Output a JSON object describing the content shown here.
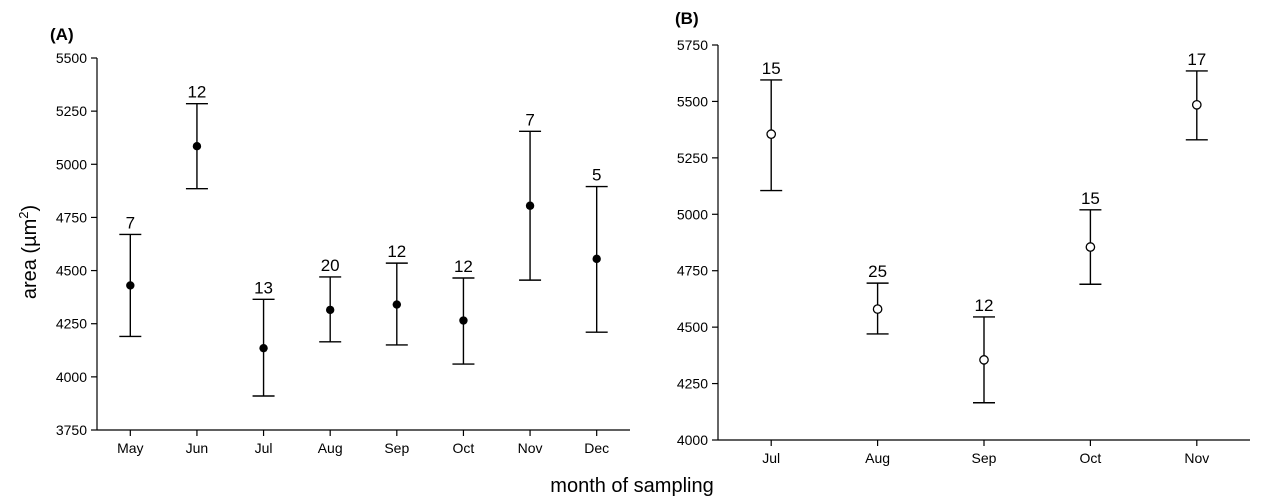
{
  "figure": {
    "xlabel": "month of sampling",
    "ylabel_main": "area (µm",
    "ylabel_sup": "2",
    "ylabel_close": ")"
  },
  "chart_data": [
    {
      "type": "scatter",
      "panel_label": "(A)",
      "marker": "filled-circle",
      "categories": [
        "May",
        "Jun",
        "Jul",
        "Aug",
        "Sep",
        "Oct",
        "Nov",
        "Dec"
      ],
      "means": [
        4430,
        5085,
        4135,
        4315,
        4340,
        4265,
        4805,
        4555
      ],
      "lower": [
        4190,
        4885,
        3910,
        4165,
        4150,
        4060,
        4455,
        4210
      ],
      "upper": [
        4670,
        5285,
        4365,
        4470,
        4535,
        4465,
        5155,
        4895
      ],
      "n": [
        "7",
        "12",
        "13",
        "20",
        "12",
        "12",
        "7",
        "5"
      ],
      "ylim": [
        3750,
        5500
      ],
      "yticks": [
        3750,
        4000,
        4250,
        4500,
        4750,
        5000,
        5250,
        5500
      ],
      "grid": false
    },
    {
      "type": "scatter",
      "panel_label": "(B)",
      "marker": "open-circle",
      "categories": [
        "Jul",
        "Aug",
        "Sep",
        "Oct",
        "Nov"
      ],
      "means": [
        5355,
        4580,
        4355,
        4855,
        5485
      ],
      "lower": [
        5105,
        4470,
        4165,
        4690,
        5330
      ],
      "upper": [
        5595,
        4695,
        4545,
        5020,
        5635
      ],
      "n": [
        "15",
        "25",
        "12",
        "15",
        "17"
      ],
      "ylim": [
        4000,
        5750
      ],
      "yticks": [
        4000,
        4250,
        4500,
        4750,
        5000,
        5250,
        5500,
        5750
      ],
      "grid": false
    }
  ]
}
